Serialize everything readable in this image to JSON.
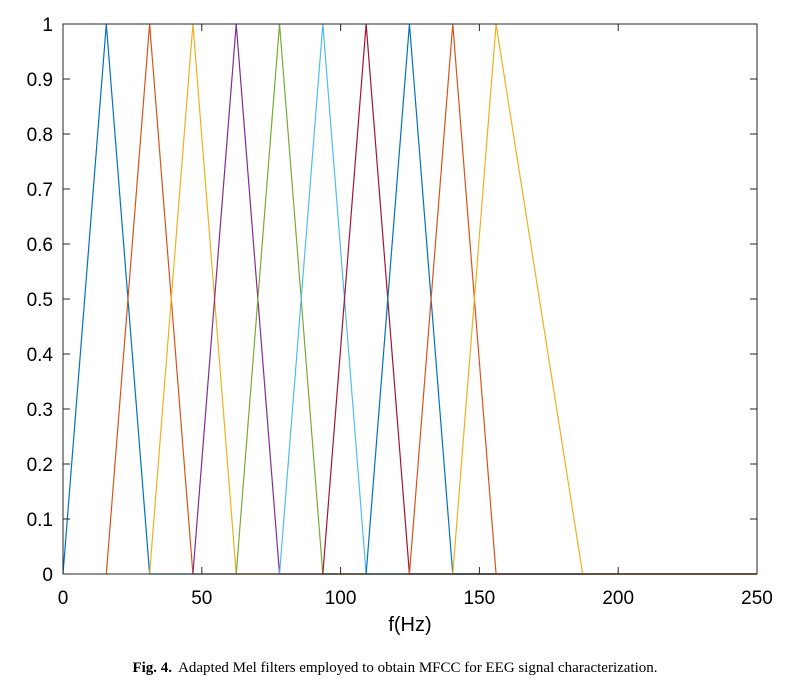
{
  "chart_data": {
    "type": "line",
    "title": "",
    "xlabel": "f(Hz)",
    "ylabel": "",
    "xlim": [
      0,
      250
    ],
    "ylim": [
      0,
      1
    ],
    "xticks": [
      0,
      50,
      100,
      150,
      200,
      250
    ],
    "yticks": [
      0,
      0.1,
      0.2,
      0.3,
      0.4,
      0.5,
      0.6,
      0.7,
      0.8,
      0.9,
      1
    ],
    "xtick_labels": [
      "0",
      "50",
      "100",
      "150",
      "200",
      "250"
    ],
    "ytick_labels": [
      "0",
      "0.1",
      "0.2",
      "0.3",
      "0.4",
      "0.5",
      "0.6",
      "0.7",
      "0.8",
      "0.9",
      "1"
    ],
    "grid": false,
    "baseline_end": 250,
    "series": [
      {
        "color": "#0072BD",
        "x": [
          0,
          15.6,
          31.2
        ],
        "y": [
          0,
          1,
          0
        ]
      },
      {
        "color": "#D95319",
        "x": [
          15.6,
          31.2,
          46.8
        ],
        "y": [
          0,
          1,
          0
        ]
      },
      {
        "color": "#EDB120",
        "x": [
          31.2,
          46.8,
          62.4
        ],
        "y": [
          0,
          1,
          0
        ]
      },
      {
        "color": "#7E2F8E",
        "x": [
          46.8,
          62.4,
          78.0
        ],
        "y": [
          0,
          1,
          0
        ]
      },
      {
        "color": "#77AC30",
        "x": [
          62.4,
          78.0,
          93.6
        ],
        "y": [
          0,
          1,
          0
        ]
      },
      {
        "color": "#4DBEEE",
        "x": [
          78.0,
          93.6,
          109.2
        ],
        "y": [
          0,
          1,
          0
        ]
      },
      {
        "color": "#A2142F",
        "x": [
          93.6,
          109.2,
          124.8
        ],
        "y": [
          0,
          1,
          0
        ]
      },
      {
        "color": "#0072BD",
        "x": [
          109.2,
          124.8,
          140.4
        ],
        "y": [
          0,
          1,
          0
        ]
      },
      {
        "color": "#D95319",
        "x": [
          124.8,
          140.4,
          156.0
        ],
        "y": [
          0,
          1,
          0
        ]
      },
      {
        "color": "#EDB120",
        "x": [
          140.4,
          156.0,
          187.2
        ],
        "y": [
          0,
          1,
          0
        ]
      }
    ]
  },
  "caption": {
    "label": "Fig. 4.",
    "text": "Adapted Mel filters employed to obtain MFCC for EEG signal characterization."
  }
}
